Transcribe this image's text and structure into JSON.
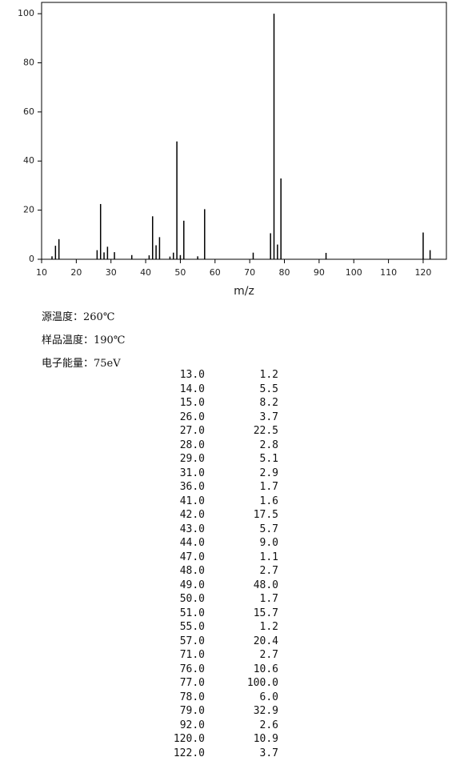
{
  "chart_data": {
    "type": "stem",
    "x_label": "m/z",
    "color": "#000000",
    "x": [
      13,
      14,
      15,
      26,
      27,
      28,
      29,
      31,
      36,
      41,
      42,
      43,
      44,
      47,
      48,
      49,
      50,
      51,
      55,
      57,
      71,
      76,
      77,
      78,
      79,
      92,
      120,
      122
    ],
    "x_labels": [
      "13.0",
      "14.0",
      "15.0",
      "26.0",
      "27.0",
      "28.0",
      "29.0",
      "31.0",
      "36.0",
      "41.0",
      "42.0",
      "43.0",
      "44.0",
      "47.0",
      "48.0",
      "49.0",
      "50.0",
      "51.0",
      "55.0",
      "57.0",
      "71.0",
      "76.0",
      "77.0",
      "78.0",
      "79.0",
      "92.0",
      "120.0",
      "122.0"
    ],
    "values": [
      1.2,
      5.5,
      8.2,
      3.7,
      22.5,
      2.8,
      5.1,
      2.9,
      1.7,
      1.6,
      17.5,
      5.7,
      9.0,
      1.1,
      2.7,
      48.0,
      1.7,
      15.7,
      1.2,
      20.4,
      2.7,
      10.6,
      100.0,
      6.0,
      32.9,
      2.6,
      10.9,
      3.7
    ],
    "value_labels": [
      "1.2",
      "5.5",
      "8.2",
      "3.7",
      "22.5",
      "2.8",
      "5.1",
      "2.9",
      "1.7",
      "1.6",
      "17.5",
      "5.7",
      "9.0",
      "1.1",
      "2.7",
      "48.0",
      "1.7",
      "15.7",
      "1.2",
      "20.4",
      "2.7",
      "10.6",
      "100.0",
      "6.0",
      "32.9",
      "2.6",
      "10.9",
      "3.7"
    ],
    "xlim": [
      10,
      126.7
    ],
    "ylim": [
      0,
      104.6
    ],
    "xticks": [
      10,
      20,
      30,
      40,
      50,
      60,
      70,
      80,
      90,
      100,
      110,
      120
    ],
    "yticks": [
      0,
      20,
      40,
      60,
      80,
      100
    ]
  },
  "info": [
    "源温度：260℃",
    "样品温度：190℃",
    "电子能量：75eV"
  ]
}
